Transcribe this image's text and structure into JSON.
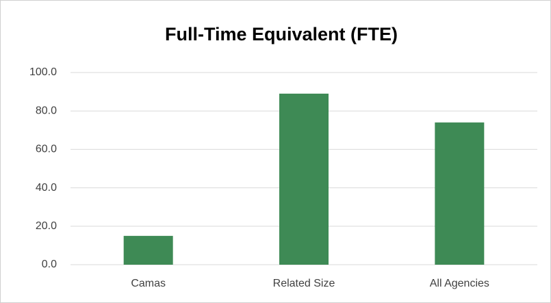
{
  "chart_data": {
    "type": "bar",
    "title": "Full-Time Equivalent (FTE)",
    "categories": [
      "Camas",
      "Related Size",
      "All Agencies"
    ],
    "values": [
      15,
      89,
      74
    ],
    "color": "#3e8a55",
    "ylim": [
      0,
      100
    ],
    "yticks": [
      {
        "value": 0,
        "label": "0.0"
      },
      {
        "value": 20,
        "label": "20.0"
      },
      {
        "value": 40,
        "label": "40.0"
      },
      {
        "value": 60,
        "label": "60.0"
      },
      {
        "value": 80,
        "label": "80.0"
      },
      {
        "value": 100,
        "label": "100.0"
      }
    ],
    "grid": true
  }
}
